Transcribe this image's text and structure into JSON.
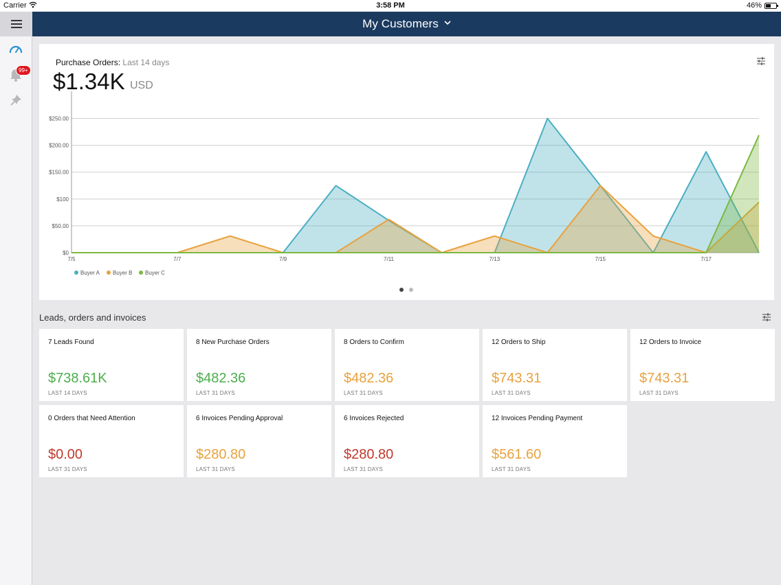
{
  "status_bar": {
    "carrier": "Carrier",
    "time": "3:58 PM",
    "battery": "46%"
  },
  "header": {
    "title": "My Customers"
  },
  "sidebar": {
    "badge": "99+"
  },
  "purchase_orders": {
    "label": "Purchase Orders:",
    "period": "Last 14 days",
    "amount": "$1.34K",
    "currency": "USD"
  },
  "chart_data": {
    "type": "area",
    "x": [
      "7/5",
      "7/6",
      "7/7",
      "7/8",
      "7/9",
      "7/10",
      "7/11",
      "7/12",
      "7/13",
      "7/14",
      "7/15",
      "7/16",
      "7/17",
      "7/18"
    ],
    "x_tick_labels": [
      "7/5",
      "7/7",
      "7/9",
      "7/11",
      "7/13",
      "7/15",
      "7/17"
    ],
    "y_tick_labels": [
      "$0",
      "$50.00",
      "$100",
      "$150.00",
      "$200.00",
      "$250.00"
    ],
    "ylim": [
      0,
      275
    ],
    "grid": true,
    "legend_position": "bottom-left",
    "series": [
      {
        "name": "Buyer A",
        "color": "#4aaec2",
        "values": [
          0,
          0,
          0,
          0,
          0,
          125,
          60,
          0,
          0,
          250,
          125,
          0,
          188,
          0
        ]
      },
      {
        "name": "Buyer B",
        "color": "#e8a23e",
        "values": [
          0,
          0,
          0,
          31,
          0,
          0,
          62,
          0,
          31,
          0,
          125,
          31,
          0,
          94
        ]
      },
      {
        "name": "Buyer C",
        "color": "#7cb842",
        "values": [
          0,
          0,
          0,
          0,
          0,
          0,
          0,
          0,
          0,
          0,
          0,
          0,
          0,
          219
        ]
      }
    ]
  },
  "section": {
    "title": "Leads, orders and invoices"
  },
  "tiles": [
    {
      "title": "7 Leads Found",
      "value": "$738.61K",
      "sub": "LAST 14 DAYS",
      "color": "#4cae4c"
    },
    {
      "title": "8 New Purchase Orders",
      "value": "$482.36",
      "sub": "LAST 31 DAYS",
      "color": "#4cae4c"
    },
    {
      "title": "8 Orders to Confirm",
      "value": "$482.36",
      "sub": "LAST 31 DAYS",
      "color": "#e8a23e"
    },
    {
      "title": "12 Orders to Ship",
      "value": "$743.31",
      "sub": "LAST 31 DAYS",
      "color": "#e8a23e"
    },
    {
      "title": "12 Orders to Invoice",
      "value": "$743.31",
      "sub": "LAST 31 DAYS",
      "color": "#e8a23e"
    },
    {
      "title": "0 Orders that Need Attention",
      "value": "$0.00",
      "sub": "LAST 31 DAYS",
      "color": "#c0392b"
    },
    {
      "title": "6 Invoices Pending Approval",
      "value": "$280.80",
      "sub": "LAST 31 DAYS",
      "color": "#e8a23e"
    },
    {
      "title": "6 Invoices Rejected",
      "value": "$280.80",
      "sub": "LAST 31 DAYS",
      "color": "#c0392b"
    },
    {
      "title": "12 Invoices Pending Payment",
      "value": "$561.60",
      "sub": "LAST 31 DAYS",
      "color": "#e8a23e"
    }
  ]
}
